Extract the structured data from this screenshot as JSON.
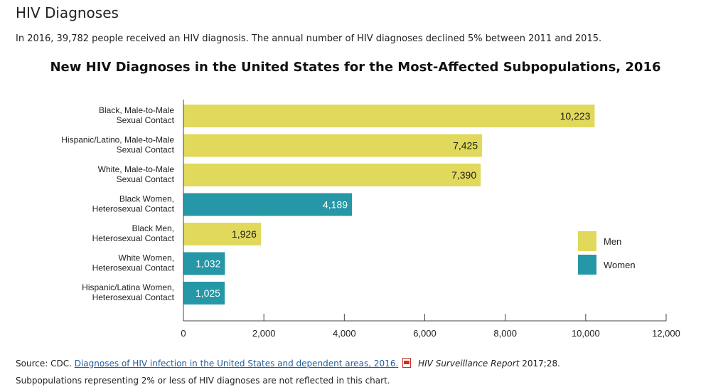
{
  "page": {
    "heading": "HIV Diagnoses",
    "intro": "In 2016, 39,782 people received an HIV diagnosis. The annual number of HIV diagnoses declined 5% between 2011 and 2015."
  },
  "chart_data": {
    "type": "bar",
    "orientation": "horizontal",
    "title": "New HIV Diagnoses in the United States for the Most-Affected Subpopulations, 2016",
    "categories": [
      [
        "Black, Male-to-Male",
        "Sexual Contact"
      ],
      [
        "Hispanic/Latino, Male-to-Male",
        "Sexual Contact"
      ],
      [
        "White, Male-to-Male",
        "Sexual Contact"
      ],
      [
        "Black Women,",
        "Heterosexual Contact"
      ],
      [
        "Black Men,",
        "Heterosexual Contact"
      ],
      [
        "White Women,",
        "Heterosexual Contact"
      ],
      [
        "Hispanic/Latina Women,",
        "Heterosexual Contact"
      ]
    ],
    "values": [
      10223,
      7425,
      7390,
      4189,
      1926,
      1032,
      1025
    ],
    "value_labels": [
      "10,223",
      "7,425",
      "7,390",
      "4,189",
      "1,926",
      "1,032",
      "1,025"
    ],
    "groups": [
      "Men",
      "Men",
      "Men",
      "Women",
      "Men",
      "Women",
      "Women"
    ],
    "legend": [
      {
        "name": "Men",
        "color": "#e0d95c"
      },
      {
        "name": "Women",
        "color": "#2597a6"
      }
    ],
    "legend_position": "right",
    "xlim": [
      0,
      12000
    ],
    "xticks": [
      0,
      2000,
      4000,
      6000,
      8000,
      10000,
      12000
    ],
    "xtick_labels": [
      "0",
      "2,000",
      "4,000",
      "6,000",
      "8,000",
      "10,000",
      "12,000"
    ],
    "grid": false
  },
  "footer": {
    "source_prefix": "Source: CDC.",
    "source_link": "Diagnoses of HIV infection in the United States and dependent areas, 2016.",
    "source_suffix": "2017;28.",
    "report_name": "HIV Surveillance Report",
    "note": "Subpopulations representing 2% or less of HIV diagnoses are not reflected in this chart."
  }
}
